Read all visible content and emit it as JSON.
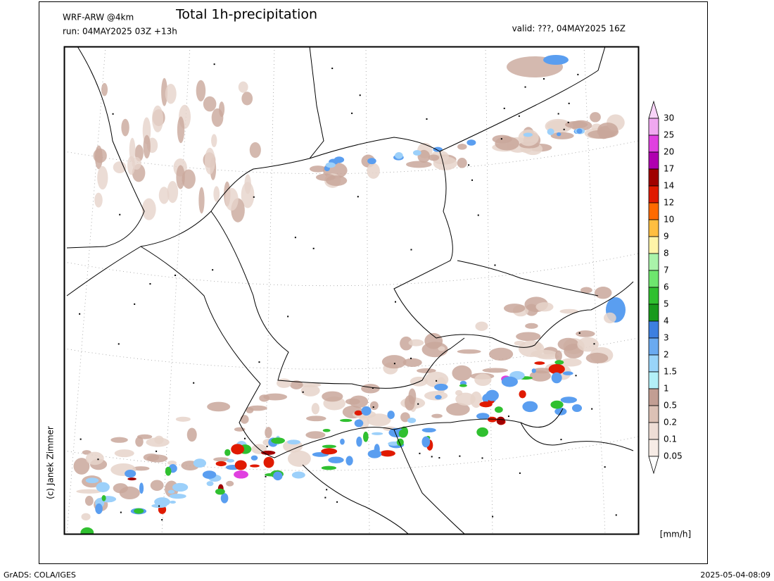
{
  "header": {
    "model": "WRF-ARW @4km",
    "title": "Total 1h-precipitation",
    "run": "run: 04MAY2025 03Z +13h",
    "valid": "valid: ???, 04MAY2025 16Z"
  },
  "legend": {
    "levels": [
      30,
      25,
      20,
      17,
      14,
      12,
      10,
      9,
      8,
      7,
      6,
      5,
      4,
      3,
      2,
      1.5,
      1,
      0.5,
      0.2,
      0.1,
      0.05
    ],
    "colors": [
      "#f8d4f8",
      "#f0a8f0",
      "#e040e0",
      "#b000b0",
      "#a00000",
      "#e01a00",
      "#ff6a00",
      "#ffbe40",
      "#fff4a8",
      "#aaf3aa",
      "#6ee66e",
      "#30c030",
      "#189a1c",
      "#3d7fe0",
      "#6aaaf0",
      "#99d4f9",
      "#b3f0f8",
      "#c29e93",
      "#dcc1b5",
      "#eeddd5",
      "#f7ece6",
      "#ffffff"
    ],
    "unit": "[mm/h]"
  },
  "credit": "(c) Janek Zimmer",
  "footer": {
    "left": "GrADS: COLA/IGES",
    "right": "2025-05-04-08:09"
  }
}
